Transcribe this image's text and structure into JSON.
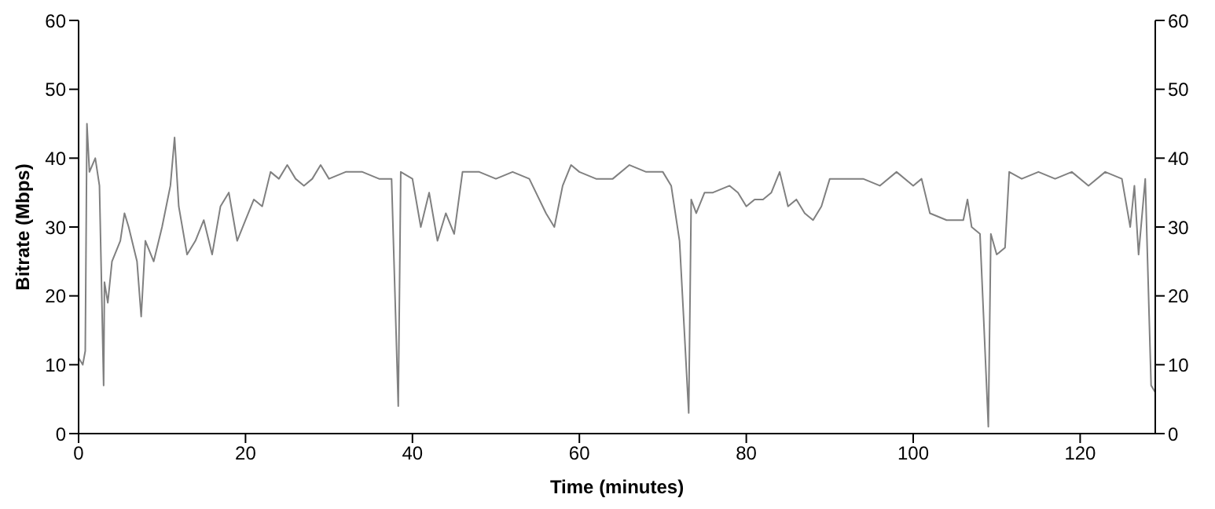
{
  "chart_data": {
    "type": "line",
    "xlabel": "Time (minutes)",
    "ylabel": "Bitrate (Mbps)",
    "xlim": [
      0,
      129
    ],
    "xticks": [
      0,
      20,
      40,
      60,
      80,
      100,
      120
    ],
    "ylim": [
      0,
      60
    ],
    "yticks": [
      0,
      10,
      20,
      30,
      40,
      50,
      60
    ],
    "y2lim": [
      0,
      60
    ],
    "y2ticks": [
      0,
      10,
      20,
      30,
      40,
      50,
      60
    ],
    "grid": false,
    "legend": false,
    "marker": "none",
    "line_style": "solid",
    "series": [
      {
        "color": "#808080",
        "x": [
          0,
          0.5,
          0.8,
          1,
          1.3,
          2,
          2.5,
          3,
          3.1,
          3.5,
          4,
          5,
          5.5,
          6,
          7,
          7.5,
          8,
          9,
          10,
          11,
          11.5,
          12,
          13,
          14,
          15,
          16,
          17,
          18,
          19,
          20,
          21,
          22,
          23,
          24,
          25,
          26,
          27,
          28,
          29,
          30,
          32,
          34,
          36,
          37.5,
          38.3,
          38.6,
          40,
          41,
          42,
          43,
          44,
          45,
          46,
          48,
          50,
          52,
          54,
          56,
          57,
          58,
          59,
          60,
          62,
          64,
          66,
          68,
          70,
          71,
          72,
          73.1,
          73.4,
          74,
          75,
          76,
          78,
          79,
          80,
          81,
          82,
          83,
          84,
          85,
          86,
          87,
          88,
          89,
          90,
          92,
          94,
          96,
          98,
          100,
          101,
          102,
          104,
          106,
          106.5,
          107,
          108,
          109,
          109.3,
          110,
          111,
          111.5,
          113,
          115,
          117,
          119,
          121,
          123,
          125,
          126,
          126.5,
          127,
          127.8,
          128.5,
          129
        ],
        "values": [
          11,
          10,
          12,
          45,
          38,
          40,
          36,
          7,
          22,
          19,
          25,
          28,
          32,
          30,
          25,
          17,
          28,
          25,
          30,
          36,
          43,
          33,
          26,
          28,
          31,
          26,
          33,
          35,
          28,
          31,
          34,
          33,
          38,
          37,
          39,
          37,
          36,
          37,
          39,
          37,
          38,
          38,
          37,
          37,
          4,
          38,
          37,
          30,
          35,
          28,
          32,
          29,
          38,
          38,
          37,
          38,
          37,
          32,
          30,
          36,
          39,
          38,
          37,
          37,
          39,
          38,
          38,
          36,
          28,
          3,
          34,
          32,
          35,
          35,
          36,
          35,
          33,
          34,
          34,
          35,
          38,
          33,
          34,
          32,
          31,
          33,
          37,
          37,
          37,
          36,
          38,
          36,
          37,
          32,
          31,
          31,
          34,
          30,
          29,
          1,
          29,
          26,
          27,
          38,
          37,
          38,
          37,
          38,
          36,
          38,
          37,
          30,
          36,
          26,
          37,
          7,
          6
        ]
      }
    ]
  }
}
